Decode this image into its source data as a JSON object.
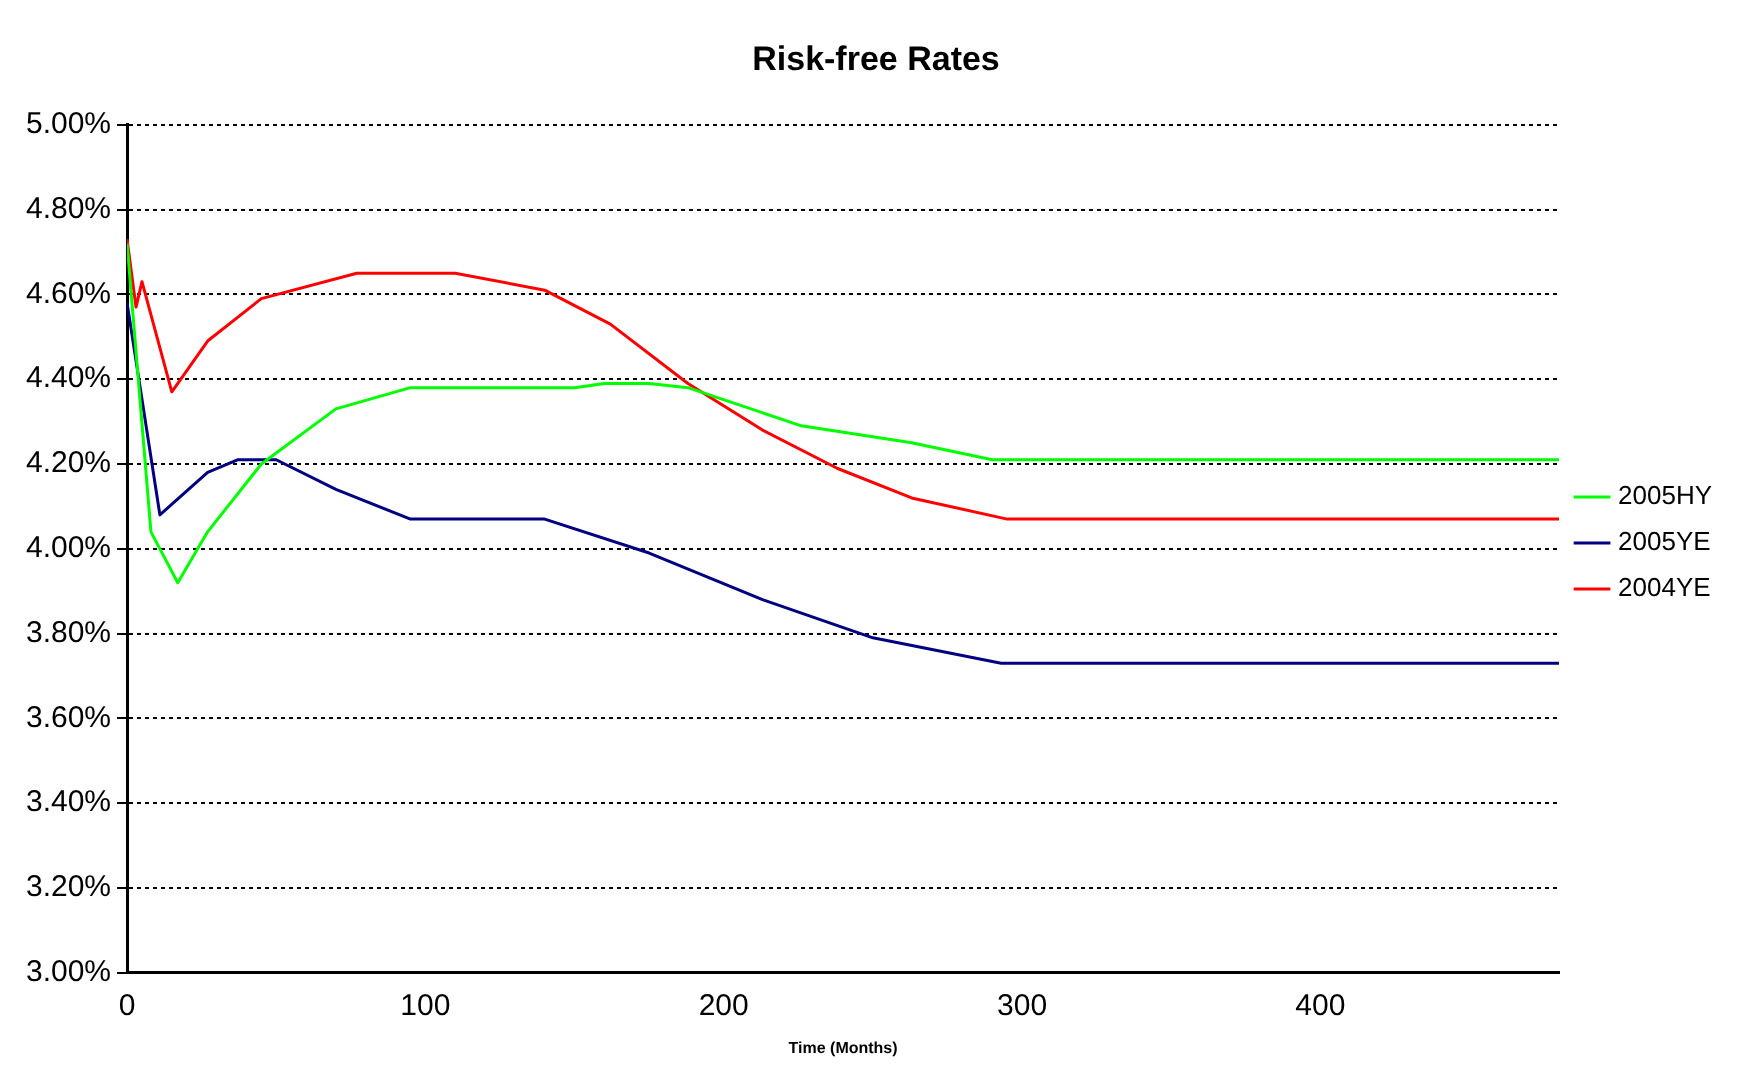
{
  "chart_data": {
    "type": "line",
    "title": "Risk-free Rates",
    "xlabel": "Time (Months)",
    "xlim": [
      0,
      480
    ],
    "xticks": [
      0,
      100,
      200,
      300,
      400
    ],
    "ylim": [
      3,
      5
    ],
    "yticks": [
      {
        "value": 3,
        "label": "3.00%"
      },
      {
        "value": 3.2,
        "label": "3.20%"
      },
      {
        "value": 3.4,
        "label": "3.40%"
      },
      {
        "value": 3.6,
        "label": "3.60%"
      },
      {
        "value": 3.8,
        "label": "3.80%"
      },
      {
        "value": 4,
        "label": "4.00%"
      },
      {
        "value": 4.2,
        "label": "4.20%"
      },
      {
        "value": 4.4,
        "label": "4.40%"
      },
      {
        "value": 4.6,
        "label": "4.60%"
      },
      {
        "value": 4.8,
        "label": "4.80%"
      },
      {
        "value": 5,
        "label": "5.00%"
      }
    ],
    "grid": "y",
    "legend": "right",
    "marker": "none",
    "line_style": "solid",
    "series": [
      {
        "name": "2005HY",
        "color": "#00ff00",
        "x": [
          0,
          8,
          17,
          27,
          45,
          70,
          95,
          150,
          160,
          175,
          188,
          226,
          263,
          290,
          480
        ],
        "values": [
          4.72,
          4.04,
          3.92,
          4.04,
          4.2,
          4.33,
          4.38,
          4.38,
          4.39,
          4.39,
          4.38,
          4.29,
          4.25,
          4.21,
          4.21
        ]
      },
      {
        "name": "2005YE",
        "color": "#000080",
        "x": [
          0,
          11,
          27,
          37,
          50,
          70,
          95,
          140,
          175,
          213,
          250,
          293,
          480
        ],
        "values": [
          4.58,
          4.08,
          4.18,
          4.21,
          4.21,
          4.14,
          4.07,
          4.07,
          3.99,
          3.88,
          3.79,
          3.73,
          3.73
        ]
      },
      {
        "name": "2004YE",
        "color": "#ff0000",
        "x": [
          0,
          3,
          5,
          15,
          27,
          45,
          77,
          110,
          140,
          162,
          188,
          213,
          238,
          263,
          295,
          480
        ],
        "values": [
          4.73,
          4.57,
          4.63,
          4.37,
          4.49,
          4.59,
          4.65,
          4.65,
          4.61,
          4.53,
          4.39,
          4.28,
          4.19,
          4.12,
          4.07,
          4.07
        ]
      }
    ]
  }
}
